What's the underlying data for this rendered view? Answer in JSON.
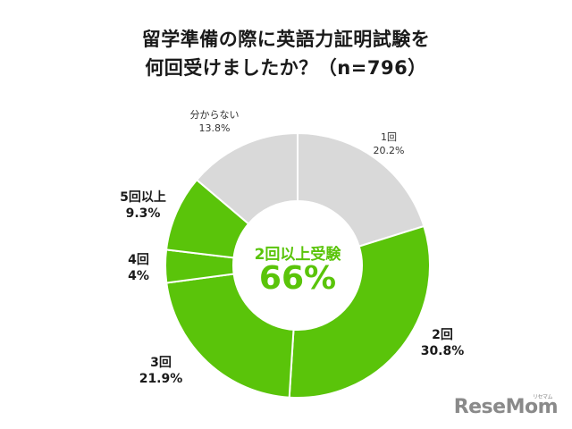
{
  "title": {
    "line1": "留学準備の際に英語力証明試験を",
    "line2": "何回受けましたか？（n=796）"
  },
  "center": {
    "caption": "2回以上受験",
    "value": "66%"
  },
  "labels": {
    "once": {
      "name": "1回",
      "pct": "20.2%"
    },
    "twice": {
      "name": "2回",
      "pct": "30.8%"
    },
    "three": {
      "name": "3回",
      "pct": "21.9%"
    },
    "four": {
      "name": "4回",
      "pct": "4%"
    },
    "five_plus": {
      "name": "5回以上",
      "pct": "9.3%"
    },
    "unknown": {
      "name": "分からない",
      "pct": "13.8%"
    }
  },
  "logo": {
    "text": "ReseMom",
    "kana": "リセマム"
  },
  "colors": {
    "green": "#5ac40a",
    "gray": "#d9d9d9",
    "separator": "#ffffff"
  },
  "chart_data": {
    "type": "pie",
    "subtype": "donut",
    "title": "留学準備の際に英語力証明試験を何回受けましたか？（n=796）",
    "categories": [
      "1回",
      "2回",
      "3回",
      "4回",
      "5回以上",
      "分からない"
    ],
    "values": [
      20.2,
      30.8,
      21.9,
      4.0,
      9.3,
      13.8
    ],
    "colors": [
      "#d9d9d9",
      "#5ac40a",
      "#5ac40a",
      "#5ac40a",
      "#5ac40a",
      "#d9d9d9"
    ],
    "start_angle_deg": 0,
    "direction": "clockwise",
    "center_annotation": {
      "caption": "2回以上受験",
      "value": "66%"
    },
    "legend": "none (direct labels)"
  }
}
